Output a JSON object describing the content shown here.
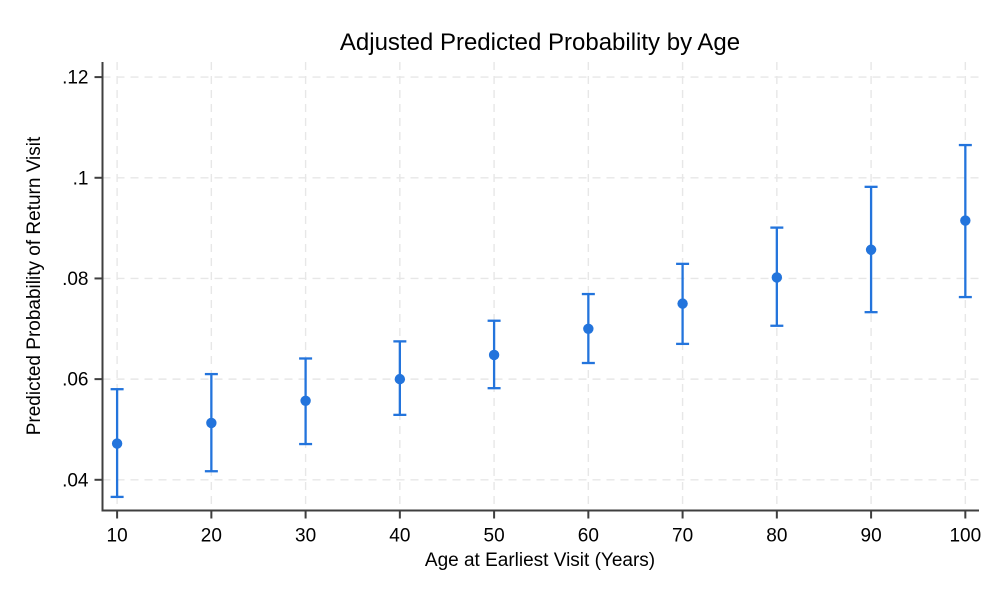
{
  "chart_data": {
    "type": "scatter",
    "subtype": "point-estimates-with-confidence-intervals",
    "title": "Adjusted Predicted Probability by Age",
    "xlabel": "Age at Earliest Visit (Years)",
    "ylabel": "Predicted Probability of Return Visit",
    "x": [
      10,
      20,
      30,
      40,
      50,
      60,
      70,
      80,
      90,
      100
    ],
    "series": [
      {
        "name": "Adjusted predicted probability",
        "values": [
          0.0472,
          0.0513,
          0.0557,
          0.06,
          0.0648,
          0.07,
          0.075,
          0.0802,
          0.0857,
          0.0915
        ],
        "ci_low": [
          0.0366,
          0.0417,
          0.0471,
          0.0529,
          0.0582,
          0.0632,
          0.067,
          0.0706,
          0.0733,
          0.0763
        ],
        "ci_high": [
          0.058,
          0.061,
          0.0641,
          0.0675,
          0.0716,
          0.0769,
          0.0829,
          0.0901,
          0.0982,
          0.1065
        ]
      }
    ],
    "xticks": [
      10,
      20,
      30,
      40,
      50,
      60,
      70,
      80,
      90,
      100
    ],
    "xtick_labels": [
      "10",
      "20",
      "30",
      "40",
      "50",
      "60",
      "70",
      "80",
      "90",
      "100"
    ],
    "yticks": [
      0.04,
      0.06,
      0.08,
      0.1,
      0.12
    ],
    "ytick_labels": [
      ".04",
      ".06",
      ".08",
      ".1",
      ".12"
    ],
    "xlim": [
      8.45,
      101.45
    ],
    "ylim": [
      0.0339,
      0.123
    ],
    "grid": "both, dashed, at every tick",
    "legend": "none",
    "colors": {
      "marker": "#2374dc",
      "error_bar": "#2374dc",
      "grid": "#e7e7e7",
      "axis": "#3f3f3f",
      "text": "#000000",
      "background": "#ffffff"
    }
  }
}
